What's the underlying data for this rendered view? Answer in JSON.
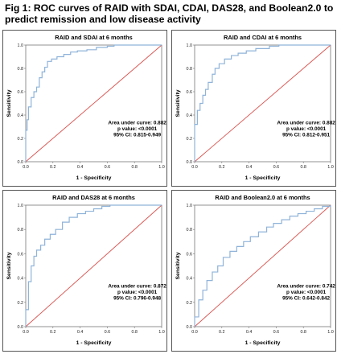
{
  "figure_title": "Fig 1: ROC curves of RAID with SDAI, CDAI, DAS28, and Boolean2.0 to predict remission and low disease activity",
  "colors": {
    "roc": "#8fb3d9",
    "reference": "#d9534f",
    "frame": "#555555"
  },
  "chart_data": [
    {
      "type": "line",
      "title": "RAID and SDAI at 6 months",
      "xlabel": "1 - Specificity",
      "ylabel": "Sensitivity",
      "xlim": [
        0,
        1
      ],
      "ylim": [
        0,
        1
      ],
      "xticks": [
        "0.0",
        "0.2",
        "0.4",
        "0.6",
        "0.8",
        "1.0"
      ],
      "yticks": [
        "0.0",
        "0.2",
        "0.4",
        "0.6",
        "0.8",
        "1.0"
      ],
      "annotation": [
        "Area under curve: 0.882",
        "p value: <0.0001",
        "95% CI: 0.815-0.949"
      ],
      "series": [
        {
          "x": [
            0,
            0,
            0.01,
            0.01,
            0.02,
            0.02,
            0.04,
            0.04,
            0.06,
            0.06,
            0.08,
            0.08,
            0.1,
            0.1,
            0.12,
            0.12,
            0.14,
            0.14,
            0.16,
            0.16,
            0.19,
            0.19,
            0.23,
            0.23,
            0.28,
            0.28,
            0.33,
            0.33,
            0.38,
            0.38,
            0.45,
            0.45,
            0.52,
            0.52,
            0.6,
            0.6,
            0.65,
            0.65,
            1.0
          ],
          "y": [
            0,
            0.27,
            0.27,
            0.36,
            0.36,
            0.47,
            0.47,
            0.55,
            0.55,
            0.6,
            0.6,
            0.64,
            0.64,
            0.72,
            0.72,
            0.77,
            0.77,
            0.81,
            0.81,
            0.86,
            0.86,
            0.88,
            0.88,
            0.9,
            0.9,
            0.92,
            0.92,
            0.94,
            0.94,
            0.95,
            0.95,
            0.96,
            0.96,
            0.98,
            0.98,
            0.99,
            0.99,
            1.0,
            1.0
          ]
        },
        {
          "x": [
            0,
            1
          ],
          "y": [
            0,
            1
          ]
        }
      ]
    },
    {
      "type": "line",
      "title": "RAID and CDAI at 6 months",
      "xlabel": "1 - Specificity",
      "ylabel": "Sensitivity",
      "xlim": [
        0,
        1
      ],
      "ylim": [
        0,
        1
      ],
      "xticks": [
        "0.0",
        "0.2",
        "0.4",
        "0.6",
        "0.8",
        "1.0"
      ],
      "yticks": [
        "0.0",
        "0.2",
        "0.4",
        "0.6",
        "0.8",
        "1.0"
      ],
      "annotation": [
        "Area under curve: 0.882",
        "p value: <0.0001",
        "95% CI: 0.812-0.951"
      ],
      "series": [
        {
          "x": [
            0,
            0,
            0.02,
            0.02,
            0.04,
            0.04,
            0.06,
            0.06,
            0.08,
            0.08,
            0.1,
            0.1,
            0.13,
            0.13,
            0.15,
            0.15,
            0.18,
            0.18,
            0.22,
            0.22,
            0.27,
            0.27,
            0.32,
            0.32,
            0.38,
            0.38,
            0.45,
            0.45,
            0.55,
            0.55,
            0.62,
            0.62,
            1.0
          ],
          "y": [
            0,
            0.32,
            0.32,
            0.44,
            0.44,
            0.5,
            0.5,
            0.57,
            0.57,
            0.62,
            0.62,
            0.68,
            0.68,
            0.75,
            0.75,
            0.8,
            0.8,
            0.84,
            0.84,
            0.88,
            0.88,
            0.91,
            0.91,
            0.93,
            0.93,
            0.95,
            0.95,
            0.97,
            0.97,
            0.99,
            0.99,
            1.0,
            1.0
          ]
        },
        {
          "x": [
            0,
            1
          ],
          "y": [
            0,
            1
          ]
        }
      ]
    },
    {
      "type": "line",
      "title": "RAID and DAS28 at 6 months",
      "xlabel": "1 - Specificity",
      "ylabel": "Sensitivity",
      "xlim": [
        0,
        1
      ],
      "ylim": [
        0,
        1
      ],
      "xticks": [
        "0.0",
        "0.2",
        "0.4",
        "0.6",
        "0.8",
        "1.0"
      ],
      "yticks": [
        "0.0",
        "0.2",
        "0.4",
        "0.6",
        "0.8",
        "1.0"
      ],
      "annotation": [
        "Area under curve: 0.872",
        "p value: <0.0001",
        "95% CI: 0.796-0.948"
      ],
      "series": [
        {
          "x": [
            0,
            0,
            0.02,
            0.02,
            0.04,
            0.04,
            0.06,
            0.06,
            0.08,
            0.08,
            0.11,
            0.11,
            0.14,
            0.14,
            0.18,
            0.18,
            0.22,
            0.22,
            0.27,
            0.27,
            0.32,
            0.32,
            0.38,
            0.38,
            0.44,
            0.44,
            0.5,
            0.5,
            0.56,
            0.56,
            0.62,
            0.62,
            1.0
          ],
          "y": [
            0,
            0.14,
            0.14,
            0.37,
            0.37,
            0.5,
            0.5,
            0.58,
            0.58,
            0.63,
            0.63,
            0.67,
            0.67,
            0.72,
            0.72,
            0.76,
            0.76,
            0.8,
            0.8,
            0.86,
            0.86,
            0.9,
            0.9,
            0.93,
            0.93,
            0.95,
            0.95,
            0.97,
            0.97,
            0.99,
            0.99,
            1.0,
            1.0
          ]
        },
        {
          "x": [
            0,
            1
          ],
          "y": [
            0,
            1
          ]
        }
      ]
    },
    {
      "type": "line",
      "title": "RAID and Boolean2.0 at 6 months",
      "xlabel": "1 - Specificity",
      "ylabel": "Sensitivity",
      "xlim": [
        0,
        1
      ],
      "ylim": [
        0,
        1
      ],
      "xticks": [
        "0.0",
        "0.2",
        "0.4",
        "0.6",
        "0.8",
        "1.0"
      ],
      "yticks": [
        "0.0",
        "0.2",
        "0.4",
        "0.6",
        "0.8",
        "1.0"
      ],
      "annotation": [
        "Area under curve: 0.742",
        "p value: <0.0001",
        "95% CI: 0.642-0.842"
      ],
      "series": [
        {
          "x": [
            0,
            0,
            0.03,
            0.03,
            0.06,
            0.06,
            0.09,
            0.09,
            0.13,
            0.13,
            0.17,
            0.17,
            0.21,
            0.21,
            0.26,
            0.26,
            0.31,
            0.31,
            0.36,
            0.36,
            0.41,
            0.41,
            0.47,
            0.47,
            0.53,
            0.53,
            0.58,
            0.58,
            0.64,
            0.64,
            0.7,
            0.7,
            0.76,
            0.76,
            0.82,
            0.82,
            0.88,
            0.88,
            0.94,
            0.94,
            1.0,
            1.0
          ],
          "y": [
            0,
            0.08,
            0.08,
            0.22,
            0.22,
            0.3,
            0.3,
            0.38,
            0.38,
            0.45,
            0.45,
            0.5,
            0.5,
            0.57,
            0.57,
            0.62,
            0.62,
            0.66,
            0.66,
            0.7,
            0.7,
            0.74,
            0.74,
            0.78,
            0.78,
            0.82,
            0.82,
            0.85,
            0.85,
            0.88,
            0.88,
            0.91,
            0.91,
            0.93,
            0.93,
            0.95,
            0.95,
            0.97,
            0.97,
            0.99,
            0.99,
            1.0
          ]
        },
        {
          "x": [
            0,
            1
          ],
          "y": [
            0,
            1
          ]
        }
      ]
    }
  ]
}
